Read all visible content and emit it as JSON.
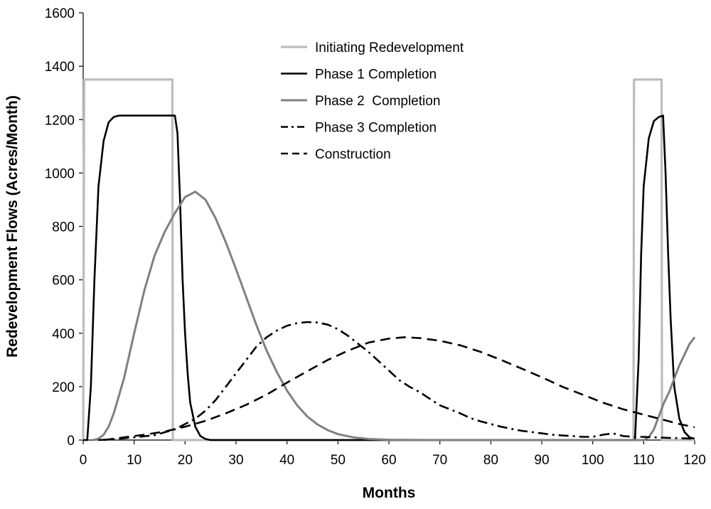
{
  "chart_data": {
    "type": "line",
    "title": "",
    "xlabel": "Months",
    "ylabel": "Redevelopment Flows (Acres/Month)",
    "xlim": [
      0,
      120
    ],
    "ylim": [
      0,
      1600
    ],
    "xticks": [
      0,
      10,
      20,
      30,
      40,
      50,
      60,
      70,
      80,
      90,
      100,
      110,
      120
    ],
    "yticks": [
      0,
      200,
      400,
      600,
      800,
      1000,
      1200,
      1400,
      1600
    ],
    "grid": false,
    "legend_position": "top-center",
    "series": [
      {
        "name": "Initiating Redevelopment",
        "color": "#bdbdbd",
        "dash": "solid",
        "points": [
          [
            0,
            0
          ],
          [
            0.2,
            1350
          ],
          [
            17.5,
            1350
          ],
          [
            17.6,
            0
          ],
          [
            108,
            0
          ],
          [
            108.1,
            1350
          ],
          [
            113.5,
            1350
          ],
          [
            113.6,
            0
          ],
          [
            120,
            0
          ]
        ]
      },
      {
        "name": "Phase 1 Completion",
        "color": "#000000",
        "dash": "solid",
        "points": [
          [
            0,
            0
          ],
          [
            0.8,
            0
          ],
          [
            1.5,
            200
          ],
          [
            2.2,
            600
          ],
          [
            3,
            950
          ],
          [
            4,
            1120
          ],
          [
            5,
            1190
          ],
          [
            6,
            1210
          ],
          [
            7,
            1215
          ],
          [
            18,
            1215
          ],
          [
            18.5,
            1150
          ],
          [
            19,
            900
          ],
          [
            19.5,
            600
          ],
          [
            20,
            400
          ],
          [
            20.5,
            250
          ],
          [
            21,
            140
          ],
          [
            22,
            50
          ],
          [
            23,
            15
          ],
          [
            24,
            4
          ],
          [
            25,
            0
          ],
          [
            108.3,
            0
          ],
          [
            109,
            300
          ],
          [
            109.5,
            700
          ],
          [
            110,
            950
          ],
          [
            111,
            1130
          ],
          [
            112,
            1195
          ],
          [
            113,
            1210
          ],
          [
            113.8,
            1215
          ],
          [
            114.3,
            1000
          ],
          [
            114.8,
            700
          ],
          [
            115.3,
            450
          ],
          [
            116,
            200
          ],
          [
            117,
            80
          ],
          [
            118,
            30
          ],
          [
            119,
            10
          ],
          [
            120,
            5
          ]
        ]
      },
      {
        "name": "Phase 2  Completion",
        "color": "#808080",
        "dash": "solid",
        "points": [
          [
            2,
            0
          ],
          [
            3,
            5
          ],
          [
            4,
            20
          ],
          [
            5,
            50
          ],
          [
            6,
            100
          ],
          [
            8,
            230
          ],
          [
            10,
            400
          ],
          [
            12,
            560
          ],
          [
            14,
            690
          ],
          [
            16,
            780
          ],
          [
            18,
            850
          ],
          [
            20,
            910
          ],
          [
            22,
            930
          ],
          [
            24,
            900
          ],
          [
            26,
            830
          ],
          [
            28,
            740
          ],
          [
            30,
            640
          ],
          [
            32,
            535
          ],
          [
            34,
            430
          ],
          [
            36,
            335
          ],
          [
            38,
            255
          ],
          [
            40,
            185
          ],
          [
            42,
            130
          ],
          [
            44,
            88
          ],
          [
            46,
            58
          ],
          [
            48,
            37
          ],
          [
            50,
            22
          ],
          [
            53,
            10
          ],
          [
            56,
            4
          ],
          [
            60,
            1
          ],
          [
            66,
            0
          ],
          [
            110,
            0
          ],
          [
            111,
            10
          ],
          [
            112,
            40
          ],
          [
            113,
            90
          ],
          [
            114,
            140
          ],
          [
            115,
            180
          ],
          [
            116,
            230
          ],
          [
            117,
            280
          ],
          [
            118,
            320
          ],
          [
            119,
            360
          ],
          [
            120,
            385
          ]
        ]
      },
      {
        "name": "Phase 3 Completion",
        "color": "#000000",
        "dash": "dashdot",
        "points": [
          [
            3,
            0
          ],
          [
            6,
            3
          ],
          [
            10,
            10
          ],
          [
            14,
            18
          ],
          [
            18,
            40
          ],
          [
            20,
            60
          ],
          [
            22,
            80
          ],
          [
            24,
            110
          ],
          [
            26,
            150
          ],
          [
            28,
            200
          ],
          [
            30,
            250
          ],
          [
            32,
            300
          ],
          [
            34,
            350
          ],
          [
            36,
            385
          ],
          [
            38,
            410
          ],
          [
            40,
            428
          ],
          [
            42,
            438
          ],
          [
            44,
            442
          ],
          [
            46,
            440
          ],
          [
            48,
            432
          ],
          [
            50,
            415
          ],
          [
            52,
            390
          ],
          [
            54,
            360
          ],
          [
            56,
            330
          ],
          [
            58,
            295
          ],
          [
            60,
            260
          ],
          [
            62,
            225
          ],
          [
            64,
            200
          ],
          [
            66,
            180
          ],
          [
            68,
            155
          ],
          [
            70,
            130
          ],
          [
            72,
            115
          ],
          [
            74,
            100
          ],
          [
            76,
            82
          ],
          [
            78,
            70
          ],
          [
            80,
            60
          ],
          [
            82,
            50
          ],
          [
            84,
            42
          ],
          [
            86,
            35
          ],
          [
            88,
            30
          ],
          [
            90,
            25
          ],
          [
            92,
            20
          ],
          [
            94,
            17
          ],
          [
            96,
            15
          ],
          [
            98,
            12
          ],
          [
            100,
            12
          ],
          [
            102,
            20
          ],
          [
            104,
            25
          ],
          [
            106,
            15
          ],
          [
            108,
            12
          ],
          [
            110,
            12
          ],
          [
            112,
            10
          ],
          [
            115,
            8
          ],
          [
            120,
            5
          ]
        ]
      },
      {
        "name": "Construction",
        "color": "#000000",
        "dash": "dash",
        "points": [
          [
            4,
            0
          ],
          [
            8,
            10
          ],
          [
            12,
            20
          ],
          [
            16,
            32
          ],
          [
            20,
            50
          ],
          [
            24,
            72
          ],
          [
            28,
            100
          ],
          [
            32,
            132
          ],
          [
            36,
            170
          ],
          [
            40,
            215
          ],
          [
            44,
            258
          ],
          [
            48,
            300
          ],
          [
            52,
            335
          ],
          [
            56,
            365
          ],
          [
            60,
            380
          ],
          [
            63,
            385
          ],
          [
            66,
            382
          ],
          [
            70,
            372
          ],
          [
            74,
            355
          ],
          [
            78,
            330
          ],
          [
            82,
            300
          ],
          [
            86,
            268
          ],
          [
            90,
            235
          ],
          [
            94,
            200
          ],
          [
            98,
            170
          ],
          [
            102,
            140
          ],
          [
            106,
            115
          ],
          [
            110,
            95
          ],
          [
            114,
            75
          ],
          [
            117,
            60
          ],
          [
            120,
            48
          ]
        ]
      }
    ]
  }
}
